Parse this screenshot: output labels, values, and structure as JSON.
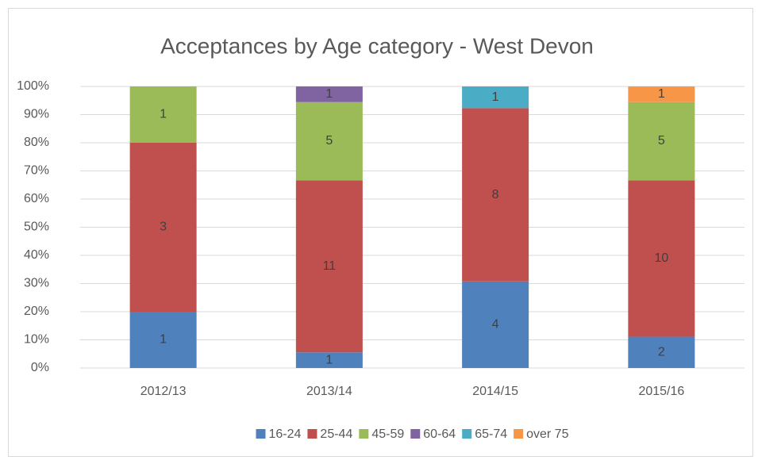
{
  "chart_data": {
    "type": "bar",
    "stacking": "percent",
    "title": "Acceptances by Age category - West Devon",
    "categories": [
      "2012/13",
      "2013/14",
      "2014/15",
      "2015/16"
    ],
    "series": [
      {
        "name": "16-24",
        "color": "#4f81bd",
        "values": [
          1,
          1,
          4,
          2
        ]
      },
      {
        "name": "25-44",
        "color": "#c0504d",
        "values": [
          3,
          11,
          8,
          10
        ]
      },
      {
        "name": "45-59",
        "color": "#9bbb59",
        "values": [
          1,
          5,
          null,
          5
        ]
      },
      {
        "name": "60-64",
        "color": "#8064a2",
        "values": [
          null,
          1,
          null,
          null
        ]
      },
      {
        "name": "65-74",
        "color": "#4bacc6",
        "values": [
          null,
          null,
          1,
          null
        ]
      },
      {
        "name": "over 75",
        "color": "#f79646",
        "values": [
          null,
          null,
          null,
          1
        ]
      }
    ],
    "ylim": [
      0,
      100
    ],
    "yticks": [
      {
        "value": 0,
        "label": "0%"
      },
      {
        "value": 10,
        "label": "10%"
      },
      {
        "value": 20,
        "label": "20%"
      },
      {
        "value": 30,
        "label": "30%"
      },
      {
        "value": 40,
        "label": "40%"
      },
      {
        "value": 50,
        "label": "50%"
      },
      {
        "value": 60,
        "label": "60%"
      },
      {
        "value": 70,
        "label": "70%"
      },
      {
        "value": 80,
        "label": "80%"
      },
      {
        "value": 90,
        "label": "90%"
      },
      {
        "value": 100,
        "label": "100%"
      }
    ],
    "grid": true,
    "legend": "bottom"
  }
}
